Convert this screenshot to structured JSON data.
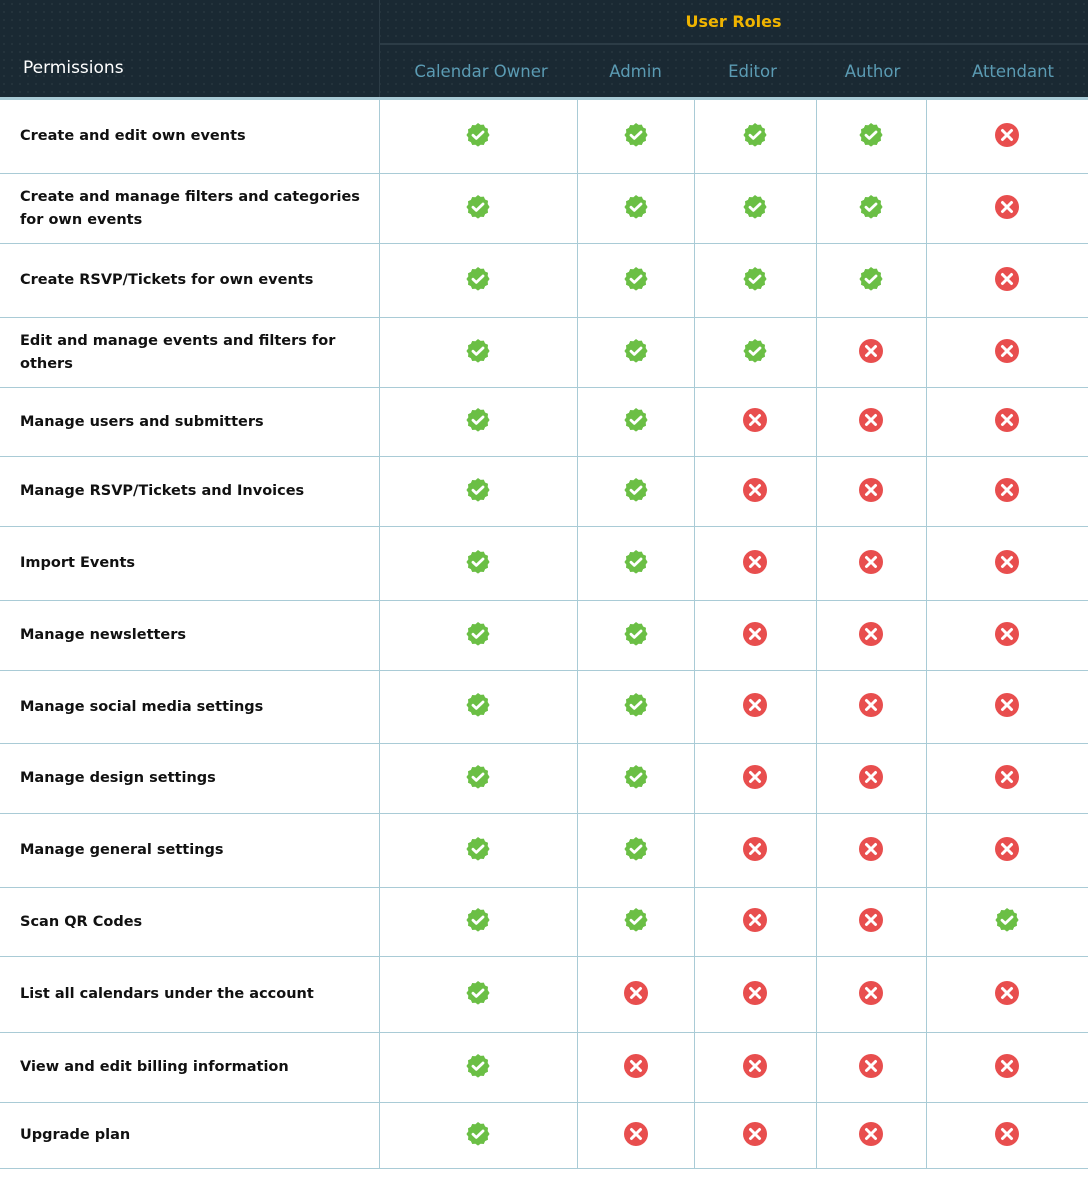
{
  "header": {
    "permissions_label": "Permissions",
    "user_roles_label": "User Roles",
    "roles": [
      "Calendar Owner",
      "Admin",
      "Editor",
      "Author",
      "Attendant"
    ]
  },
  "icons": {
    "allowed": "check-badge-icon",
    "denied": "x-circle-icon"
  },
  "colors": {
    "header_bg": "#1a2933",
    "accent": "#f0b400",
    "role_text": "#5b9bb3",
    "check": "#6bbf45",
    "cross": "#e84e4e",
    "grid": "#a9cbd6"
  },
  "rows": [
    {
      "label": "Create and edit own events",
      "values": [
        true,
        true,
        true,
        true,
        false
      ]
    },
    {
      "label": "Create and manage filters and categories for own events",
      "values": [
        true,
        true,
        true,
        true,
        false
      ]
    },
    {
      "label": "Create RSVP/Tickets for own events",
      "values": [
        true,
        true,
        true,
        true,
        false
      ]
    },
    {
      "label": "Edit and manage events and filters for others",
      "values": [
        true,
        true,
        true,
        false,
        false
      ]
    },
    {
      "label": "Manage users and submitters",
      "values": [
        true,
        true,
        false,
        false,
        false
      ]
    },
    {
      "label": "Manage RSVP/Tickets and Invoices",
      "values": [
        true,
        true,
        false,
        false,
        false
      ]
    },
    {
      "label": "Import Events",
      "values": [
        true,
        true,
        false,
        false,
        false
      ]
    },
    {
      "label": "Manage newsletters",
      "values": [
        true,
        true,
        false,
        false,
        false
      ]
    },
    {
      "label": "Manage social media settings",
      "values": [
        true,
        true,
        false,
        false,
        false
      ]
    },
    {
      "label": "Manage design settings",
      "values": [
        true,
        true,
        false,
        false,
        false
      ]
    },
    {
      "label": "Manage general settings",
      "values": [
        true,
        true,
        false,
        false,
        false
      ]
    },
    {
      "label": "Scan QR Codes",
      "values": [
        true,
        true,
        false,
        false,
        true
      ]
    },
    {
      "label": "List all calendars under the account",
      "values": [
        true,
        false,
        false,
        false,
        false
      ]
    },
    {
      "label": "View and edit billing information",
      "values": [
        true,
        false,
        false,
        false,
        false
      ]
    },
    {
      "label": "Upgrade plan",
      "values": [
        true,
        false,
        false,
        false,
        false
      ]
    }
  ]
}
